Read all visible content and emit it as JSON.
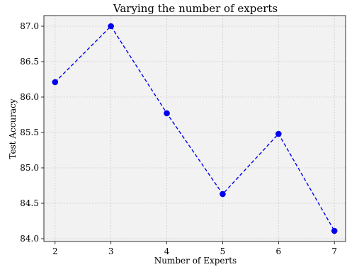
{
  "chart_data": {
    "type": "line",
    "title": "Varying the number of experts",
    "xlabel": "Number of Experts",
    "ylabel": "Test Accuracy",
    "x": [
      2,
      3,
      4,
      5,
      6,
      7
    ],
    "series": [
      {
        "values": [
          86.21,
          87.0,
          85.77,
          84.63,
          85.48,
          84.11
        ]
      }
    ],
    "xlim": [
      1.8,
      7.2
    ],
    "ylim": [
      83.96,
      87.15
    ],
    "xticks": [
      "2",
      "3",
      "4",
      "5",
      "6",
      "7"
    ],
    "yticks": [
      "84.0",
      "84.5",
      "85.0",
      "85.5",
      "86.0",
      "86.5",
      "87.0"
    ],
    "grid": true,
    "line_style": "dashed",
    "marker": "circle",
    "colors": {
      "line": "#0000ee",
      "plot_background": "#f2f2f2",
      "grid": "#cccccc"
    }
  }
}
